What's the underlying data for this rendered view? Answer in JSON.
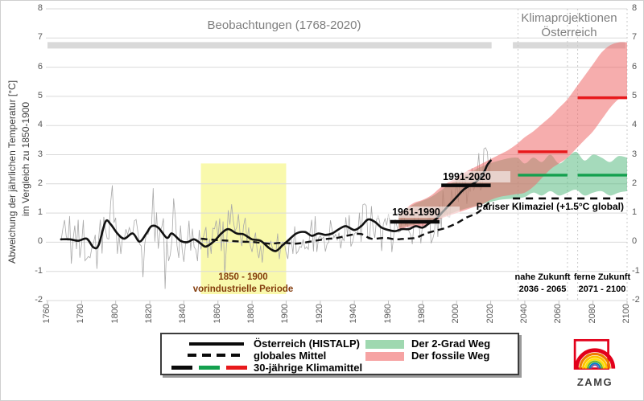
{
  "figure": {
    "titles": {
      "observations": "Beobachtungen (1768-2020)",
      "projections_line1": "Klimaprojektionen",
      "projections_line2": "Österreich"
    },
    "annotations": {
      "period_1961": "1961-1990",
      "period_1991": "1991-2020",
      "preindustrial_line1": "1850 - 1900",
      "preindustrial_line2": "vorindustrielle Periode",
      "paris": "Pariser Klimaziel (+1.5°C global)",
      "near_future_line1": "nahe Zukunft",
      "near_future_line2": "2036 - 2065",
      "far_future_line1": "ferne Zukunft",
      "far_future_line2": "2071 - 2100"
    },
    "legend": {
      "items": [
        {
          "key": "histalp",
          "label": "Österreich (HISTALP)",
          "swatch": "solid-black-line"
        },
        {
          "key": "global",
          "label": "globales Mittel",
          "swatch": "dashed-black-line"
        },
        {
          "key": "means",
          "label": "30-jährige Klimamittel",
          "swatch": "tricolor-line"
        },
        {
          "key": "twodeg",
          "label": "Der 2-Grad Weg",
          "swatch": "green-fill"
        },
        {
          "key": "fossil",
          "label": "Der fossile Weg",
          "swatch": "pink-fill"
        }
      ]
    },
    "logo": {
      "text": "ZAMG"
    },
    "colors": {
      "fossil_band": "#ee6a6a",
      "two_degree_band": "#4cb577",
      "fossil_line": "#e8191c",
      "two_degree_line": "#13a04e",
      "highlight_yellow": "#f9f9ac",
      "reference_bar": "#d9d9d9",
      "grid": "#d9d9d9",
      "annual_line": "#a9a9a9",
      "austria_line": "#111111",
      "global_line": "#111111",
      "legend_green": "#9fd8b0",
      "legend_pink": "#f6a3a3",
      "preindustrial_text": "#843c0c",
      "title_gray": "#7f7f7f"
    }
  },
  "chart_data": {
    "type": "line",
    "title": "Beobachtungen (1768-2020) / Klimaprojektionen Österreich",
    "x_axis": {
      "min": 1760,
      "max": 2100,
      "tick_step": 20,
      "ticks": [
        1760,
        1780,
        1800,
        1820,
        1840,
        1860,
        1880,
        1900,
        1920,
        1940,
        1960,
        1980,
        2000,
        2020,
        2040,
        2060,
        2080,
        2100
      ]
    },
    "y_axis": {
      "min": -2,
      "max": 8,
      "tick_step": 1,
      "title_line1": "Abweichung der jährlichen Temperatur [°C]",
      "title_line2": "im Vergleich zu 1850-1900",
      "ticks": [
        8,
        7,
        6,
        5,
        4,
        3,
        2,
        1,
        0,
        -1,
        -2
      ]
    },
    "grid": "horizontal",
    "series": {
      "austria_histalp_smooth": [
        [
          1768,
          0.1
        ],
        [
          1773,
          0.1
        ],
        [
          1778,
          0.05
        ],
        [
          1783,
          0.12
        ],
        [
          1787,
          -0.18
        ],
        [
          1790,
          -0.1
        ],
        [
          1794,
          0.7
        ],
        [
          1797,
          0.62
        ],
        [
          1801,
          0.3
        ],
        [
          1805,
          0.12
        ],
        [
          1810,
          0.3
        ],
        [
          1814,
          0.02
        ],
        [
          1818,
          0.3
        ],
        [
          1821,
          0.55
        ],
        [
          1825,
          0.5
        ],
        [
          1830,
          0.15
        ],
        [
          1833,
          0.3
        ],
        [
          1838,
          0.05
        ],
        [
          1842,
          0.0
        ],
        [
          1846,
          0.1
        ],
        [
          1850,
          -0.05
        ],
        [
          1853,
          -0.15
        ],
        [
          1858,
          0.05
        ],
        [
          1862,
          0.3
        ],
        [
          1866,
          0.45
        ],
        [
          1871,
          0.3
        ],
        [
          1875,
          0.27
        ],
        [
          1880,
          0.1
        ],
        [
          1885,
          0.05
        ],
        [
          1890,
          -0.2
        ],
        [
          1894,
          -0.3
        ],
        [
          1898,
          -0.1
        ],
        [
          1901,
          0.05
        ],
        [
          1906,
          0.3
        ],
        [
          1911,
          0.35
        ],
        [
          1915,
          0.22
        ],
        [
          1919,
          0.3
        ],
        [
          1923,
          0.25
        ],
        [
          1927,
          0.3
        ],
        [
          1931,
          0.45
        ],
        [
          1935,
          0.55
        ],
        [
          1940,
          0.42
        ],
        [
          1944,
          0.55
        ],
        [
          1948,
          0.78
        ],
        [
          1952,
          0.7
        ],
        [
          1956,
          0.5
        ],
        [
          1960,
          0.42
        ],
        [
          1964,
          0.38
        ],
        [
          1968,
          0.45
        ],
        [
          1972,
          0.45
        ],
        [
          1976,
          0.55
        ],
        [
          1980,
          0.5
        ],
        [
          1984,
          0.65
        ],
        [
          1988,
          0.8
        ],
        [
          1992,
          1.05
        ],
        [
          1996,
          1.3
        ],
        [
          2000,
          1.55
        ],
        [
          2004,
          1.8
        ],
        [
          2008,
          1.95
        ],
        [
          2012,
          2.1
        ],
        [
          2016,
          2.4
        ],
        [
          2018,
          2.65
        ],
        [
          2020,
          2.8
        ]
      ],
      "global_mean_smooth": [
        [
          1850,
          0.12
        ],
        [
          1858,
          0.08
        ],
        [
          1866,
          0.05
        ],
        [
          1874,
          0.02
        ],
        [
          1882,
          0.0
        ],
        [
          1890,
          -0.05
        ],
        [
          1898,
          -0.02
        ],
        [
          1906,
          -0.05
        ],
        [
          1914,
          0.02
        ],
        [
          1922,
          0.1
        ],
        [
          1930,
          0.15
        ],
        [
          1938,
          0.25
        ],
        [
          1944,
          0.28
        ],
        [
          1950,
          0.12
        ],
        [
          1958,
          0.15
        ],
        [
          1964,
          0.1
        ],
        [
          1970,
          0.12
        ],
        [
          1976,
          0.15
        ],
        [
          1982,
          0.3
        ],
        [
          1988,
          0.4
        ],
        [
          1994,
          0.5
        ],
        [
          2000,
          0.65
        ],
        [
          2006,
          0.85
        ],
        [
          2012,
          1.0
        ],
        [
          2016,
          1.2
        ],
        [
          2020,
          1.4
        ]
      ],
      "annual": {
        "base": "austria_histalp_smooth",
        "start": 1768,
        "end": 2020,
        "amp_pre1850": 0.85,
        "amp_1850_1945": 0.7,
        "amp_post1945": 0.75,
        "overrides": {
          "1798": 1.95,
          "1816": -1.2,
          "1822": 1.85,
          "1829": -1.6,
          "1834": 1.5,
          "1864": -1.1,
          "1868": 1.3,
          "1956": -0.3,
          "2003": 2.4,
          "2013": 3.05,
          "2016": 3.2,
          "2018": 3.1,
          "2019": 2.3,
          "2020": 2.9
        }
      }
    },
    "bands": {
      "fossil_path": [
        [
          1966,
          0.45,
          0.95
        ],
        [
          1970,
          0.5,
          1.15
        ],
        [
          1975,
          0.55,
          1.35
        ],
        [
          1980,
          0.55,
          1.45
        ],
        [
          1985,
          0.65,
          1.6
        ],
        [
          1990,
          0.8,
          1.85
        ],
        [
          1995,
          0.9,
          2.05
        ],
        [
          2000,
          1.0,
          2.2
        ],
        [
          2005,
          1.1,
          2.4
        ],
        [
          2010,
          1.2,
          2.55
        ],
        [
          2015,
          1.3,
          2.7
        ],
        [
          2020,
          1.45,
          2.85
        ],
        [
          2025,
          1.55,
          3.0
        ],
        [
          2030,
          1.6,
          3.15
        ],
        [
          2035,
          1.65,
          3.35
        ],
        [
          2040,
          1.7,
          3.6
        ],
        [
          2045,
          1.9,
          3.8
        ],
        [
          2050,
          2.2,
          4.05
        ],
        [
          2055,
          2.5,
          4.3
        ],
        [
          2060,
          2.7,
          4.6
        ],
        [
          2065,
          2.9,
          4.9
        ],
        [
          2070,
          3.2,
          5.3
        ],
        [
          2075,
          3.5,
          5.7
        ],
        [
          2080,
          3.8,
          6.1
        ],
        [
          2085,
          4.2,
          6.5
        ],
        [
          2090,
          4.6,
          6.75
        ],
        [
          2095,
          4.9,
          6.85
        ],
        [
          2100,
          5.0,
          6.85
        ]
      ],
      "two_degree_path": [
        [
          1966,
          0.5,
          0.95
        ],
        [
          1975,
          0.6,
          1.3
        ],
        [
          1985,
          0.7,
          1.55
        ],
        [
          1995,
          0.95,
          1.95
        ],
        [
          2005,
          1.15,
          2.3
        ],
        [
          2015,
          1.3,
          2.6
        ],
        [
          2025,
          1.45,
          2.8
        ],
        [
          2035,
          1.5,
          2.9
        ],
        [
          2040,
          1.55,
          2.7
        ],
        [
          2045,
          1.7,
          2.9
        ],
        [
          2050,
          1.6,
          2.75
        ],
        [
          2055,
          1.75,
          3.0
        ],
        [
          2060,
          1.6,
          2.7
        ],
        [
          2065,
          1.7,
          2.9
        ],
        [
          2070,
          1.8,
          3.1
        ],
        [
          2075,
          1.6,
          2.8
        ],
        [
          2080,
          1.7,
          3.0
        ],
        [
          2085,
          1.75,
          2.9
        ],
        [
          2090,
          1.6,
          2.75
        ],
        [
          2095,
          1.7,
          2.95
        ],
        [
          2100,
          1.75,
          2.9
        ]
      ]
    },
    "thirty_year_means": {
      "observed": [
        {
          "label": "1961-1990",
          "start": 1961,
          "end": 1990,
          "value": 0.7
        },
        {
          "label": "1991-2020",
          "start": 1991,
          "end": 2020,
          "value": 1.95
        }
      ],
      "two_degree": [
        {
          "start": 2036,
          "end": 2065,
          "value": 2.3
        },
        {
          "start": 2071,
          "end": 2100,
          "value": 2.3
        }
      ],
      "fossil": [
        {
          "start": 2036,
          "end": 2065,
          "value": 3.1
        },
        {
          "start": 2071,
          "end": 2100,
          "value": 4.95
        }
      ]
    },
    "paris_target": {
      "value": 1.5,
      "start": 2033,
      "end": 2100
    },
    "preindustrial_region": {
      "start": 1850,
      "end": 1900,
      "y_top": 2.7,
      "y_bottom": -1.78
    },
    "reference_bars": {
      "value": 6.75,
      "segments": [
        [
          1760,
          2020.5
        ],
        [
          2033,
          2099
        ]
      ]
    },
    "projection_guides": [
      2036,
      2065,
      2071,
      2100
    ],
    "future_period_centers": [
      2050.5,
      2085.5
    ]
  }
}
